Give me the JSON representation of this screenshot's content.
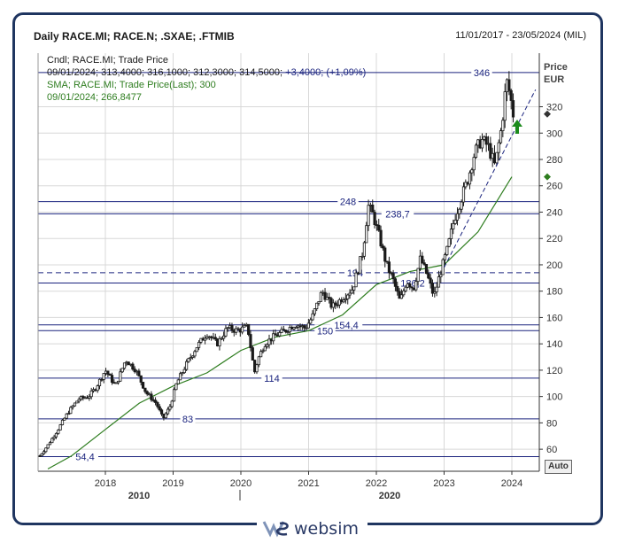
{
  "header": {
    "title": "Daily RACE.MI; RACE.N; .SXAE; .FTMIB",
    "date_range": "11/01/2017 - 23/05/2024 (MIL)"
  },
  "legend": {
    "line1": "Cndl; RACE.MI; Trade Price",
    "line2_date_ohlc": "09/01/2024; 313,4000; 316,1000; 312,3000; 314,5000;",
    "line2_change": "+3,4000; (+1,09%)",
    "line3": "SMA; RACE.MI; Trade Price(Last);  300",
    "line4": "09/01/2024; 266,8477"
  },
  "axis": {
    "price_label": "Price",
    "currency_label": "EUR",
    "auto_button": "Auto",
    "y_ticks": [
      "60",
      "80",
      "100",
      "120",
      "140",
      "160",
      "180",
      "200",
      "220",
      "240",
      "260",
      "280",
      "300",
      "320"
    ],
    "x_ticks": [
      "2018",
      "2019",
      "2020",
      "2021",
      "2022",
      "2023",
      "2024"
    ],
    "x_decades": [
      "2010",
      "2020"
    ]
  },
  "footer": {
    "brand": "websim"
  },
  "colors": {
    "candle": "#1a1a1a",
    "sma": "#2e7d1f",
    "level_line": "#1a237e",
    "label_text": "#1a237e",
    "up_arrow": "#1b8a1b",
    "grid": "#d8d8d8",
    "frame": "#1f3560"
  },
  "chart_data": {
    "type": "line",
    "title": "Daily RACE.MI; RACE.N; .SXAE; .FTMIB",
    "subtitle": "11/01/2017 - 23/05/2024 (MIL)",
    "ylabel": "Price EUR",
    "xlabel": "",
    "ylim": [
      40,
      350
    ],
    "xlim": [
      2017.0,
      2024.55
    ],
    "grid": true,
    "legend_position": "top-left",
    "series": [
      {
        "name": "Cndl; RACE.MI; Trade Price",
        "style": "candlestick",
        "x": [
          2017.03,
          2017.15,
          2017.3,
          2017.45,
          2017.6,
          2017.75,
          2017.85,
          2018.0,
          2018.15,
          2018.3,
          2018.45,
          2018.6,
          2018.75,
          2018.85,
          2018.95,
          2019.05,
          2019.2,
          2019.35,
          2019.5,
          2019.65,
          2019.8,
          2019.95,
          2020.1,
          2020.2,
          2020.25,
          2020.35,
          2020.5,
          2020.65,
          2020.8,
          2020.95,
          2021.05,
          2021.2,
          2021.35,
          2021.5,
          2021.65,
          2021.8,
          2021.88,
          2021.95,
          2022.05,
          2022.15,
          2022.25,
          2022.35,
          2022.45,
          2022.55,
          2022.65,
          2022.75,
          2022.85,
          2022.95,
          2023.05,
          2023.15,
          2023.25,
          2023.35,
          2023.45,
          2023.55,
          2023.65,
          2023.75,
          2023.85,
          2023.92,
          2023.97,
          2024.02
        ],
        "y": [
          55,
          63,
          75,
          88,
          98,
          100,
          106,
          120,
          108,
          128,
          120,
          103,
          95,
          83,
          92,
          110,
          125,
          138,
          148,
          140,
          152,
          150,
          153,
          118,
          128,
          140,
          146,
          150,
          155,
          152,
          160,
          180,
          168,
          175,
          182,
          210,
          245,
          238,
          220,
          200,
          188,
          172,
          188,
          182,
          205,
          192,
          176,
          195,
          212,
          235,
          250,
          265,
          285,
          295,
          290,
          275,
          305,
          340,
          330,
          314.5
        ]
      },
      {
        "name": "SMA; RACE.MI; Trade Price(Last);  300",
        "x": [
          2017.15,
          2017.5,
          2018.0,
          2018.5,
          2019.0,
          2019.5,
          2020.0,
          2020.5,
          2021.0,
          2021.5,
          2022.0,
          2022.5,
          2023.0,
          2023.5,
          2024.0
        ],
        "y": [
          45,
          55,
          75,
          95,
          108,
          118,
          135,
          145,
          150,
          162,
          185,
          195,
          200,
          225,
          266.8
        ]
      }
    ],
    "horizontal_levels": [
      {
        "value": 346,
        "label": "346"
      },
      {
        "value": 248,
        "label": "248"
      },
      {
        "value": 238.7,
        "label": "238,7"
      },
      {
        "value": 194,
        "label": "194"
      },
      {
        "value": 186.2,
        "label": "186,2"
      },
      {
        "value": 154.4,
        "label": "154,4"
      },
      {
        "value": 150,
        "label": "150"
      },
      {
        "value": 114,
        "label": "114"
      },
      {
        "value": 83,
        "label": "83"
      },
      {
        "value": 54.4,
        "label": "54,4"
      }
    ],
    "trendline": {
      "x": [
        2023.0,
        2024.35
      ],
      "y": [
        198,
        333
      ]
    },
    "last_price_marker": 314.5,
    "sma_marker": 266.8
  }
}
